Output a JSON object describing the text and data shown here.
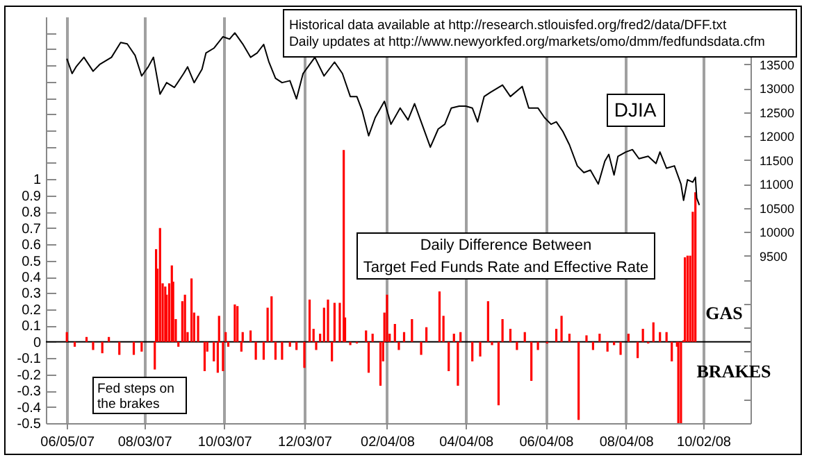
{
  "chart_data": {
    "type": "bar",
    "series": [
      {
        "color": "#ff0000",
        "x": [
          "2007-06-05",
          "2007-06-11",
          "2007-06-20",
          "2007-06-25",
          "2007-07-02",
          "2007-07-07",
          "2007-07-15",
          "2007-07-26",
          "2007-08-01",
          "2007-08-11",
          "2007-08-12",
          "2007-08-13",
          "2007-08-15",
          "2007-08-17",
          "2007-08-19",
          "2007-08-20",
          "2007-08-22",
          "2007-08-24",
          "2007-08-25",
          "2007-08-27",
          "2007-08-29",
          "2007-09-01",
          "2007-09-03",
          "2007-09-05",
          "2007-09-08",
          "2007-09-10",
          "2007-09-13",
          "2007-09-18",
          "2007-09-20",
          "2007-09-25",
          "2007-09-28",
          "2007-09-29",
          "2007-10-02",
          "2007-10-04",
          "2007-10-06",
          "2007-10-11",
          "2007-10-13",
          "2007-10-16",
          "2007-10-17",
          "2007-10-23",
          "2007-10-27",
          "2007-11-02",
          "2007-11-05",
          "2007-11-08",
          "2007-11-11",
          "2007-11-16",
          "2007-11-22",
          "2007-11-27",
          "2007-12-03",
          "2007-12-07",
          "2007-12-10",
          "2007-12-12",
          "2007-12-15",
          "2007-12-18",
          "2007-12-21",
          "2007-12-24",
          "2007-12-26",
          "2007-12-30",
          "2008-01-02",
          "2008-01-03",
          "2008-01-07",
          "2008-01-12",
          "2008-01-19",
          "2008-01-21",
          "2008-01-24",
          "2008-01-30",
          "2008-02-01",
          "2008-02-02",
          "2008-02-04",
          "2008-02-06",
          "2008-02-10",
          "2008-02-13",
          "2008-02-17",
          "2008-02-23",
          "2008-03-01",
          "2008-03-05",
          "2008-03-15",
          "2008-03-18",
          "2008-03-22",
          "2008-03-26",
          "2008-03-29",
          "2008-03-31",
          "2008-04-09",
          "2008-04-15",
          "2008-04-21",
          "2008-04-24",
          "2008-04-29",
          "2008-05-02",
          "2008-05-08",
          "2008-05-13",
          "2008-05-19",
          "2008-05-24",
          "2008-05-29",
          "2008-06-05",
          "2008-06-12",
          "2008-06-16",
          "2008-06-22",
          "2008-06-29",
          "2008-07-05",
          "2008-07-10",
          "2008-07-15",
          "2008-07-21",
          "2008-07-26",
          "2008-07-31",
          "2008-08-06",
          "2008-08-13",
          "2008-08-17",
          "2008-08-21",
          "2008-08-25",
          "2008-08-30",
          "2008-09-04",
          "2008-09-08",
          "2008-09-12",
          "2008-09-13",
          "2008-09-15",
          "2008-09-17",
          "2008-09-18",
          "2008-09-20",
          "2008-09-22",
          "2008-09-24",
          "2008-09-26"
        ],
        "values": [
          0.06,
          -0.03,
          0.03,
          -0.05,
          -0.07,
          0.03,
          -0.08,
          -0.08,
          -0.06,
          -0.17,
          0.57,
          0.45,
          0.7,
          0.36,
          0.34,
          0.29,
          0.36,
          0.47,
          0.37,
          0.14,
          -0.03,
          0.25,
          0.29,
          0.06,
          0.39,
          0.18,
          0.16,
          -0.18,
          -0.06,
          -0.12,
          -0.19,
          0.16,
          -0.18,
          0.06,
          -0.03,
          0.23,
          0.22,
          -0.06,
          0.06,
          0.07,
          -0.11,
          -0.11,
          0.21,
          0.28,
          -0.11,
          -0.11,
          -0.03,
          -0.05,
          -0.16,
          0.26,
          0.08,
          -0.05,
          0.05,
          0.21,
          0.26,
          -0.12,
          0.24,
          0.24,
          1.18,
          0.15,
          -0.02,
          -0.01,
          0.07,
          -0.19,
          0.05,
          -0.27,
          -0.12,
          0.18,
          0.29,
          0.05,
          0.11,
          -0.05,
          0.06,
          0.14,
          -0.08,
          0.09,
          0.31,
          0.16,
          -0.18,
          0.05,
          -0.27,
          0.06,
          -0.12,
          -0.09,
          0.25,
          -0.02,
          -0.39,
          0.14,
          0.08,
          -0.05,
          0.06,
          -0.24,
          -0.05,
          -0.01,
          0.08,
          0.16,
          0.05,
          -0.48,
          0.04,
          -0.05,
          0.05,
          -0.06,
          -0.02,
          -0.08,
          0.05,
          -0.1,
          0.08,
          -0.01,
          0.12,
          0.06,
          0.06,
          -0.12,
          -0.03,
          -0.5,
          -0.5,
          0.01,
          0.52,
          0.53,
          0.53,
          0.8,
          0.92
        ]
      },
      {
        "name": "DJIA",
        "type": "line",
        "axis": "y2",
        "color": "#000000",
        "x": [
          "2007-06-05",
          "2007-06-09",
          "2007-06-12",
          "2007-06-18",
          "2007-06-25",
          "2007-06-30",
          "2007-07-09",
          "2007-07-16",
          "2007-07-21",
          "2007-07-27",
          "2007-08-01",
          "2007-08-06",
          "2007-08-10",
          "2007-08-15",
          "2007-08-20",
          "2007-08-26",
          "2007-09-02",
          "2007-09-05",
          "2007-09-10",
          "2007-09-16",
          "2007-09-19",
          "2007-09-25",
          "2007-10-02",
          "2007-10-07",
          "2007-10-11",
          "2007-10-17",
          "2007-10-23",
          "2007-10-28",
          "2007-11-02",
          "2007-11-06",
          "2007-11-11",
          "2007-11-16",
          "2007-11-22",
          "2007-11-27",
          "2007-12-02",
          "2007-12-11",
          "2007-12-18",
          "2007-12-26",
          "2008-01-01",
          "2008-01-07",
          "2008-01-12",
          "2008-01-16",
          "2008-01-21",
          "2008-01-26",
          "2008-02-02",
          "2008-02-07",
          "2008-02-14",
          "2008-02-20",
          "2008-02-25",
          "2008-03-01",
          "2008-03-08",
          "2008-03-14",
          "2008-03-19",
          "2008-03-24",
          "2008-03-30",
          "2008-04-04",
          "2008-04-09",
          "2008-04-13",
          "2008-04-18",
          "2008-04-23",
          "2008-05-02",
          "2008-05-08",
          "2008-05-17",
          "2008-05-22",
          "2008-05-29",
          "2008-06-03",
          "2008-06-08",
          "2008-06-12",
          "2008-06-17",
          "2008-06-22",
          "2008-06-28",
          "2008-07-03",
          "2008-07-08",
          "2008-07-14",
          "2008-07-19",
          "2008-07-22",
          "2008-07-26",
          "2008-07-29",
          "2008-08-04",
          "2008-08-09",
          "2008-08-14",
          "2008-08-21",
          "2008-08-27",
          "2008-08-30",
          "2008-09-04",
          "2008-09-10",
          "2008-09-15",
          "2008-09-17",
          "2008-09-20",
          "2008-09-24",
          "2008-09-26",
          "2008-09-27",
          "2008-09-29"
        ],
        "values": [
          13620,
          13310,
          13450,
          13650,
          13360,
          13500,
          13650,
          13960,
          13930,
          13690,
          13260,
          13450,
          13650,
          12880,
          13120,
          13020,
          13310,
          13450,
          13120,
          13400,
          13740,
          13840,
          14080,
          14030,
          14160,
          13930,
          13650,
          13740,
          13920,
          13550,
          13210,
          13120,
          13160,
          12780,
          13310,
          13650,
          13260,
          13550,
          13310,
          12830,
          12830,
          12540,
          12010,
          12390,
          12730,
          12250,
          12590,
          12340,
          12680,
          12300,
          11770,
          12150,
          12250,
          12590,
          12630,
          12630,
          12590,
          12300,
          12830,
          12920,
          13070,
          12830,
          13040,
          12590,
          12590,
          12390,
          12250,
          12300,
          12100,
          11820,
          11380,
          11240,
          11290,
          11000,
          11480,
          11620,
          11190,
          11580,
          11670,
          11720,
          11530,
          11580,
          11430,
          11670,
          11330,
          11380,
          11000,
          10660,
          11090,
          11040,
          11140,
          10710,
          10560
        ]
      }
    ],
    "xlim": [
      "2007-05-20",
      "2008-11-07"
    ],
    "xticks": [
      {
        "value": "2007-06-05",
        "label": "06/05/07"
      },
      {
        "value": "2007-08-03",
        "label": "08/03/07"
      },
      {
        "value": "2007-10-03",
        "label": "10/03/07"
      },
      {
        "value": "2007-12-03",
        "label": "12/03/07"
      },
      {
        "value": "2008-02-04",
        "label": "02/04/08"
      },
      {
        "value": "2008-04-04",
        "label": "04/04/08"
      },
      {
        "value": "2008-06-04",
        "label": "06/04/08"
      },
      {
        "value": "2008-08-04",
        "label": "08/04/08"
      },
      {
        "value": "2008-10-02",
        "label": "10/02/08"
      }
    ],
    "ylim": [
      -0.5,
      2.0
    ],
    "yticks": [
      -0.5,
      -0.4,
      -0.3,
      -0.2,
      -0.1,
      0,
      0.1,
      0.2,
      0.3,
      0.4,
      0.5,
      0.6,
      0.7,
      0.8,
      0.9,
      1,
      {
        "value": 1.1,
        "label": null
      },
      {
        "value": 1.2,
        "label": null
      },
      {
        "value": 1.3,
        "label": null
      },
      {
        "value": 1.4,
        "label": null
      },
      {
        "value": 1.5,
        "label": null
      },
      {
        "value": 1.6,
        "label": null
      },
      {
        "value": 1.7,
        "label": null
      },
      {
        "value": 1.8,
        "label": null
      },
      {
        "value": 1.9,
        "label": null
      }
    ],
    "y2lim": [
      6000,
      14500
    ],
    "y2ticks": [
      {
        "value": 6000,
        "label": null
      },
      {
        "value": 6500,
        "label": null
      },
      {
        "value": 7000,
        "label": null
      },
      {
        "value": 7500,
        "label": null
      },
      {
        "value": 8000,
        "label": null
      },
      {
        "value": 8500,
        "label": null
      },
      {
        "value": 9000,
        "label": null
      },
      9500,
      10000,
      10500,
      11000,
      11500,
      12000,
      12500,
      13000,
      13500
    ],
    "grid": "x",
    "ref_lines": [
      {
        "axis": "y",
        "value": 0,
        "color": "#000000"
      }
    ],
    "annotations": [
      "Historical data available at  http://research.stlouisfed.org/fred2/data/DFF.txt",
      "Daily updates at http://www.newyorkfed.org/markets/omo/dmm/fedfundsdata.cfm",
      "Daily Difference Between",
      "Target Fed Funds Rate and Effective Rate",
      "GAS",
      "BRAKES",
      "Fed steps on",
      "the brakes"
    ]
  }
}
